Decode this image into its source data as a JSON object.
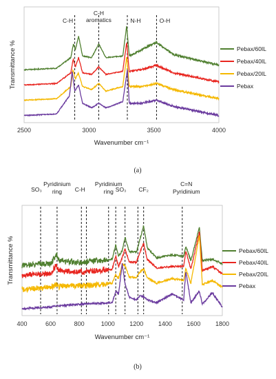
{
  "chart_data": [
    {
      "type": "line",
      "panel_label": "(a)",
      "xlabel": "Wavenumber cm⁻¹",
      "ylabel": "Transmittance %",
      "xlim": [
        2500,
        4000
      ],
      "xticks": [
        "2500",
        "3000",
        "3500",
        "4000"
      ],
      "yticks": false,
      "grid": false,
      "legend_position": "right",
      "reference_lines": [
        {
          "x": 2890,
          "label_lines": [
            "C-H"
          ]
        },
        {
          "x": 3075,
          "label_lines": [
            "C-H",
            "aromatics"
          ]
        },
        {
          "x": 3295,
          "label_lines": [
            "N-H"
          ]
        },
        {
          "x": 3520,
          "label_lines": [
            "O-H"
          ]
        }
      ],
      "series": [
        {
          "name": "Pebax/60IL",
          "color": "#4f7f2f",
          "offset": 3,
          "baseline": [
            [
              2500,
              0.2
            ],
            [
              2750,
              0.3
            ],
            [
              2860,
              1.0
            ],
            [
              2880,
              1.9
            ],
            [
              2895,
              1.5
            ],
            [
              2920,
              2.4
            ],
            [
              2950,
              1.1
            ],
            [
              3020,
              1.0
            ],
            [
              3075,
              1.9
            ],
            [
              3130,
              1.0
            ],
            [
              3260,
              1.1
            ],
            [
              3290,
              3.1
            ],
            [
              3310,
              1.1
            ],
            [
              3400,
              1.5
            ],
            [
              3520,
              2.0
            ],
            [
              3650,
              1.2
            ],
            [
              4000,
              0.5
            ]
          ]
        },
        {
          "name": "Pebax/40IL",
          "color": "#e8251f",
          "offset": 2,
          "baseline": [
            [
              2500,
              0.2
            ],
            [
              2750,
              0.3
            ],
            [
              2860,
              1.0
            ],
            [
              2878,
              1.9
            ],
            [
              2895,
              1.4
            ],
            [
              2920,
              2.0
            ],
            [
              2950,
              1.0
            ],
            [
              3020,
              0.9
            ],
            [
              3075,
              1.4
            ],
            [
              3130,
              0.9
            ],
            [
              3260,
              1.1
            ],
            [
              3290,
              3.0
            ],
            [
              3310,
              1.1
            ],
            [
              3400,
              1.2
            ],
            [
              3520,
              1.5
            ],
            [
              3650,
              1.0
            ],
            [
              4000,
              0.4
            ]
          ]
        },
        {
          "name": "Pebax/20IL",
          "color": "#f5b800",
          "offset": 1,
          "baseline": [
            [
              2500,
              0.2
            ],
            [
              2750,
              0.3
            ],
            [
              2860,
              1.1
            ],
            [
              2875,
              2.2
            ],
            [
              2895,
              1.6
            ],
            [
              2918,
              2.0
            ],
            [
              2950,
              1.1
            ],
            [
              3020,
              0.9
            ],
            [
              3075,
              1.3
            ],
            [
              3130,
              0.8
            ],
            [
              3260,
              1.1
            ],
            [
              3290,
              3.1
            ],
            [
              3310,
              1.1
            ],
            [
              3400,
              1.1
            ],
            [
              3520,
              1.3
            ],
            [
              3650,
              0.9
            ],
            [
              4000,
              0.3
            ]
          ]
        },
        {
          "name": "Pebax",
          "color": "#6a3a9e",
          "offset": 0,
          "baseline": [
            [
              2500,
              0.2
            ],
            [
              2750,
              0.3
            ],
            [
              2850,
              1.5
            ],
            [
              2870,
              3.1
            ],
            [
              2890,
              1.8
            ],
            [
              2920,
              2.2
            ],
            [
              2950,
              1.0
            ],
            [
              3020,
              0.7
            ],
            [
              3075,
              1.0
            ],
            [
              3130,
              0.7
            ],
            [
              3260,
              1.1
            ],
            [
              3295,
              3.2
            ],
            [
              3310,
              1.0
            ],
            [
              3400,
              1.0
            ],
            [
              3520,
              1.2
            ],
            [
              3650,
              0.8
            ],
            [
              4000,
              0.2
            ]
          ]
        }
      ]
    },
    {
      "type": "line",
      "panel_label": "(b)",
      "xlabel": "Wavenumber cm⁻¹",
      "ylabel": "Transmittance %",
      "xlim": [
        400,
        1800
      ],
      "xticks": [
        "400",
        "600",
        "800",
        "1000",
        "1200",
        "1400",
        "1600",
        "1800"
      ],
      "yticks": false,
      "grid": false,
      "legend_position": "right",
      "reference_lines": [
        {
          "x": 530,
          "label_lines": [
            "SO₃"
          ]
        },
        {
          "x": 645,
          "label_lines": [
            "Pyridinium",
            "ring"
          ]
        },
        {
          "x": 815,
          "label_lines": [
            "C-H"
          ]
        },
        {
          "x": 850,
          "label_lines": []
        },
        {
          "x": 1005,
          "label_lines": [
            "Pyridinium",
            "ring"
          ]
        },
        {
          "x": 1055,
          "label_lines": []
        },
        {
          "x": 1120,
          "label_lines": [
            "SO₃"
          ]
        },
        {
          "x": 1210,
          "label_lines": []
        },
        {
          "x": 1250,
          "label_lines": [
            "CF₂"
          ]
        },
        {
          "x": 1520,
          "label_lines": [
            "C=N",
            "Pyridinium"
          ]
        }
      ],
      "series": [
        {
          "name": "Pebax/60IL",
          "color": "#4f7f2f",
          "offset": 3,
          "baseline": [
            [
              400,
              0.2
            ],
            [
              600,
              0.3
            ],
            [
              640,
              0.9
            ],
            [
              660,
              0.5
            ],
            [
              800,
              0.4
            ],
            [
              1030,
              0.6
            ],
            [
              1055,
              1.6
            ],
            [
              1075,
              0.8
            ],
            [
              1100,
              1.2
            ],
            [
              1120,
              2.1
            ],
            [
              1150,
              1.1
            ],
            [
              1200,
              1.1
            ],
            [
              1225,
              2.0
            ],
            [
              1250,
              2.9
            ],
            [
              1275,
              1.4
            ],
            [
              1340,
              0.7
            ],
            [
              1450,
              0.9
            ],
            [
              1530,
              0.8
            ],
            [
              1545,
              1.5
            ],
            [
              1580,
              0.5
            ],
            [
              1640,
              2.8
            ],
            [
              1660,
              0.5
            ],
            [
              1730,
              0.6
            ],
            [
              1800,
              0.3
            ]
          ]
        },
        {
          "name": "Pebax/40IL",
          "color": "#e8251f",
          "offset": 2.3,
          "baseline": [
            [
              400,
              0.2
            ],
            [
              600,
              0.3
            ],
            [
              640,
              0.9
            ],
            [
              660,
              0.5
            ],
            [
              800,
              0.4
            ],
            [
              1030,
              0.6
            ],
            [
              1055,
              1.5
            ],
            [
              1075,
              0.8
            ],
            [
              1100,
              1.4
            ],
            [
              1120,
              2.0
            ],
            [
              1150,
              1.1
            ],
            [
              1200,
              1.1
            ],
            [
              1225,
              1.8
            ],
            [
              1250,
              2.4
            ],
            [
              1275,
              1.3
            ],
            [
              1340,
              0.7
            ],
            [
              1450,
              0.8
            ],
            [
              1530,
              0.8
            ],
            [
              1545,
              1.9
            ],
            [
              1580,
              0.6
            ],
            [
              1640,
              3.2
            ],
            [
              1660,
              0.5
            ],
            [
              1730,
              0.8
            ],
            [
              1800,
              0.3
            ]
          ]
        },
        {
          "name": "Pebax/20IL",
          "color": "#f5b800",
          "offset": 1.35,
          "baseline": [
            [
              400,
              0.2
            ],
            [
              600,
              0.3
            ],
            [
              640,
              0.5
            ],
            [
              660,
              0.4
            ],
            [
              800,
              0.4
            ],
            [
              1030,
              0.6
            ],
            [
              1055,
              1.2
            ],
            [
              1075,
              0.9
            ],
            [
              1100,
              1.9
            ],
            [
              1120,
              1.8
            ],
            [
              1150,
              1.0
            ],
            [
              1200,
              1.0
            ],
            [
              1225,
              1.4
            ],
            [
              1250,
              1.6
            ],
            [
              1275,
              1.0
            ],
            [
              1340,
              0.6
            ],
            [
              1450,
              0.9
            ],
            [
              1530,
              0.8
            ],
            [
              1545,
              1.6
            ],
            [
              1580,
              0.6
            ],
            [
              1640,
              3.9
            ],
            [
              1660,
              0.5
            ],
            [
              1730,
              0.8
            ],
            [
              1800,
              0.3
            ]
          ]
        },
        {
          "name": "Pebax",
          "color": "#6a3a9e",
          "offset": 0,
          "baseline": [
            [
              400,
              0.2
            ],
            [
              600,
              0.3
            ],
            [
              640,
              0.4
            ],
            [
              660,
              0.4
            ],
            [
              800,
              0.5
            ],
            [
              1030,
              0.6
            ],
            [
              1055,
              1.4
            ],
            [
              1075,
              1.2
            ],
            [
              1100,
              3.3
            ],
            [
              1120,
              1.9
            ],
            [
              1150,
              1.0
            ],
            [
              1200,
              0.8
            ],
            [
              1225,
              1.1
            ],
            [
              1250,
              1.0
            ],
            [
              1275,
              0.8
            ],
            [
              1340,
              0.6
            ],
            [
              1450,
              1.2
            ],
            [
              1530,
              0.8
            ],
            [
              1545,
              2.8
            ],
            [
              1580,
              0.6
            ],
            [
              1640,
              1.4
            ],
            [
              1660,
              0.5
            ],
            [
              1730,
              1.3
            ],
            [
              1800,
              0.3
            ]
          ]
        }
      ]
    }
  ]
}
